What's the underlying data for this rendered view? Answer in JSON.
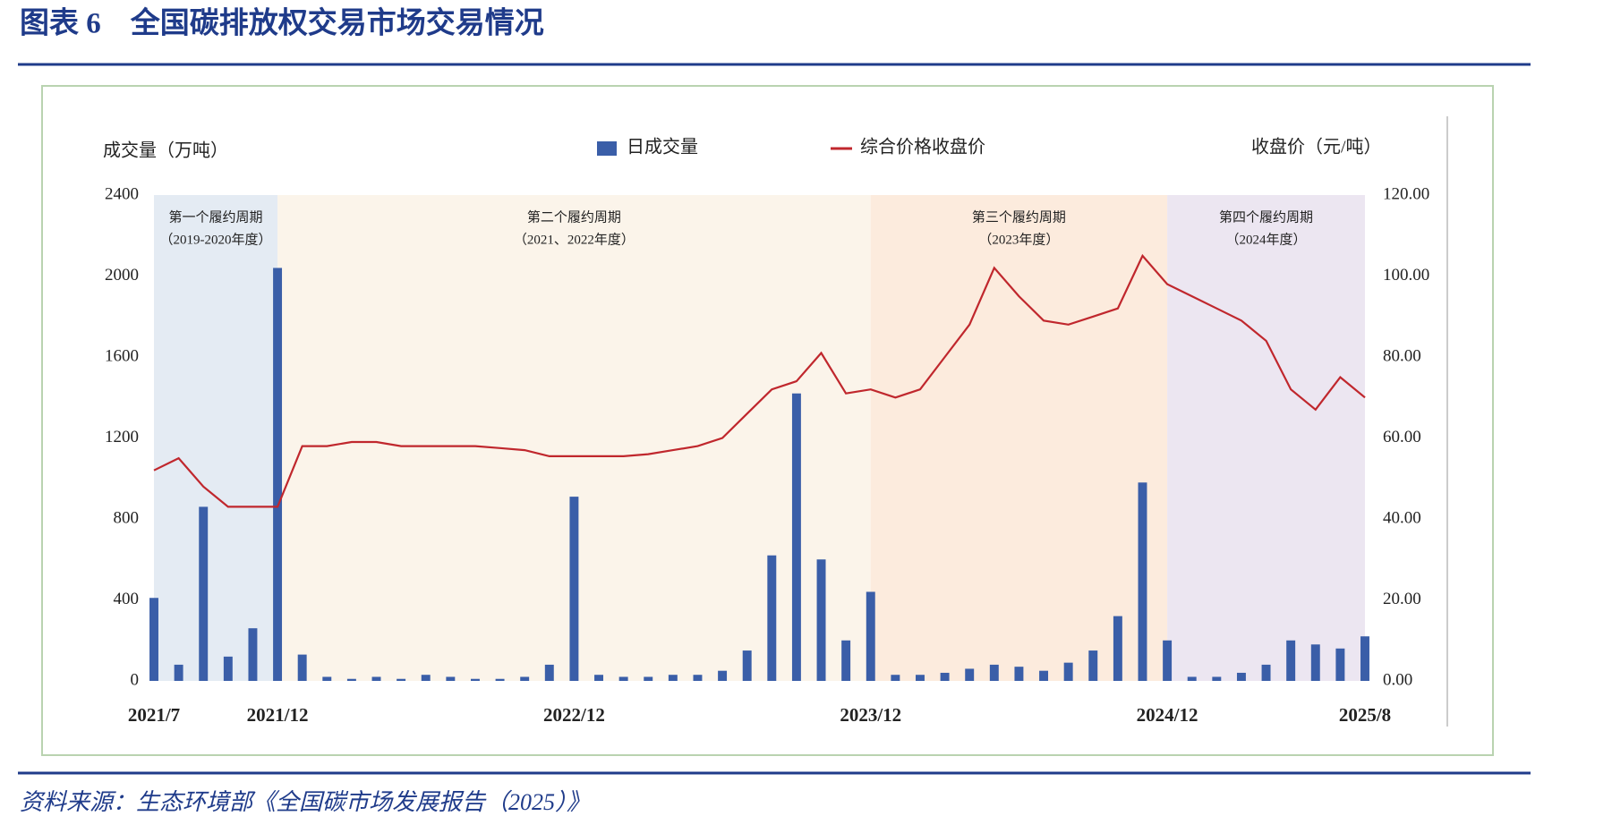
{
  "title": "图表 6　全国碳排放权交易市场交易情况",
  "source": "资料来源：生态环境部《全国碳市场发展报告（2025）》",
  "chart_data": {
    "type": "bar-line",
    "y_axis_title": "成交量（万吨）",
    "y2_axis_title": "收盘价（元/吨）",
    "x": [
      "2021/7",
      null,
      null,
      null,
      null,
      "2021/12",
      null,
      null,
      null,
      null,
      null,
      null,
      null,
      null,
      null,
      null,
      null,
      "2022/12",
      null,
      null,
      null,
      null,
      null,
      null,
      null,
      null,
      null,
      null,
      null,
      "2023/12",
      null,
      null,
      null,
      null,
      null,
      null,
      null,
      null,
      null,
      null,
      null,
      "2024/12",
      null,
      null,
      null,
      null,
      null,
      null,
      null,
      "2025/8"
    ],
    "series": [
      {
        "name": "日成交量",
        "type": "bar",
        "color": "#3a5ea8",
        "values": [
          410,
          80,
          860,
          120,
          260,
          2040,
          130,
          20,
          10,
          20,
          10,
          30,
          20,
          10,
          10,
          20,
          80,
          910,
          30,
          20,
          20,
          30,
          30,
          50,
          150,
          620,
          1420,
          600,
          200,
          440,
          30,
          30,
          40,
          60,
          80,
          70,
          50,
          90,
          150,
          320,
          980,
          200,
          20,
          20,
          40,
          80,
          200,
          180,
          160,
          220
        ]
      },
      {
        "name": "综合价格收盘价",
        "type": "line",
        "axis": "y2",
        "color": "#c0272d",
        "values": [
          52,
          55,
          48,
          43,
          43,
          43,
          58,
          58,
          59,
          59,
          58,
          58,
          58,
          58,
          57.5,
          57,
          55.5,
          55.5,
          55.5,
          55.5,
          56,
          57,
          58,
          60,
          66,
          72,
          74,
          81,
          71,
          72,
          70,
          72,
          80,
          88,
          102,
          95,
          89,
          88,
          90,
          92,
          105,
          98,
          95,
          92,
          89,
          84,
          72,
          67,
          75,
          70
        ]
      }
    ],
    "ylim": [
      0,
      2400
    ],
    "yticks": [
      0,
      400,
      800,
      1200,
      1600,
      2000,
      2400
    ],
    "y2lim": [
      0,
      120
    ],
    "y2ticks": [
      {
        "value": 0,
        "label": "0.00"
      },
      {
        "value": 20,
        "label": "20.00"
      },
      {
        "value": 40,
        "label": "40.00"
      },
      {
        "value": 60,
        "label": "60.00"
      },
      {
        "value": 80,
        "label": "80.00"
      },
      {
        "value": 100,
        "label": "100.00"
      },
      {
        "value": 120,
        "label": "120.00"
      }
    ],
    "periods": [
      {
        "label": "第一个履约周期",
        "sublabel": "（2019-2020年度）",
        "start": "2021/7",
        "end": "2021/12",
        "color": "#e4ebf3"
      },
      {
        "label": "第二个履约周期",
        "sublabel": "（2021、2022年度）",
        "start": "2021/12",
        "end": "2023/12",
        "color": "#fbf4ea"
      },
      {
        "label": "第三个履约周期",
        "sublabel": "（2023年度）",
        "start": "2023/12",
        "end": "2024/12",
        "color": "#fcebdd"
      },
      {
        "label": "第四个履约周期",
        "sublabel": "（2024年度）",
        "start": "2024/12",
        "end": "2025/8",
        "color": "#ece6f1"
      }
    ],
    "grid": false
  }
}
